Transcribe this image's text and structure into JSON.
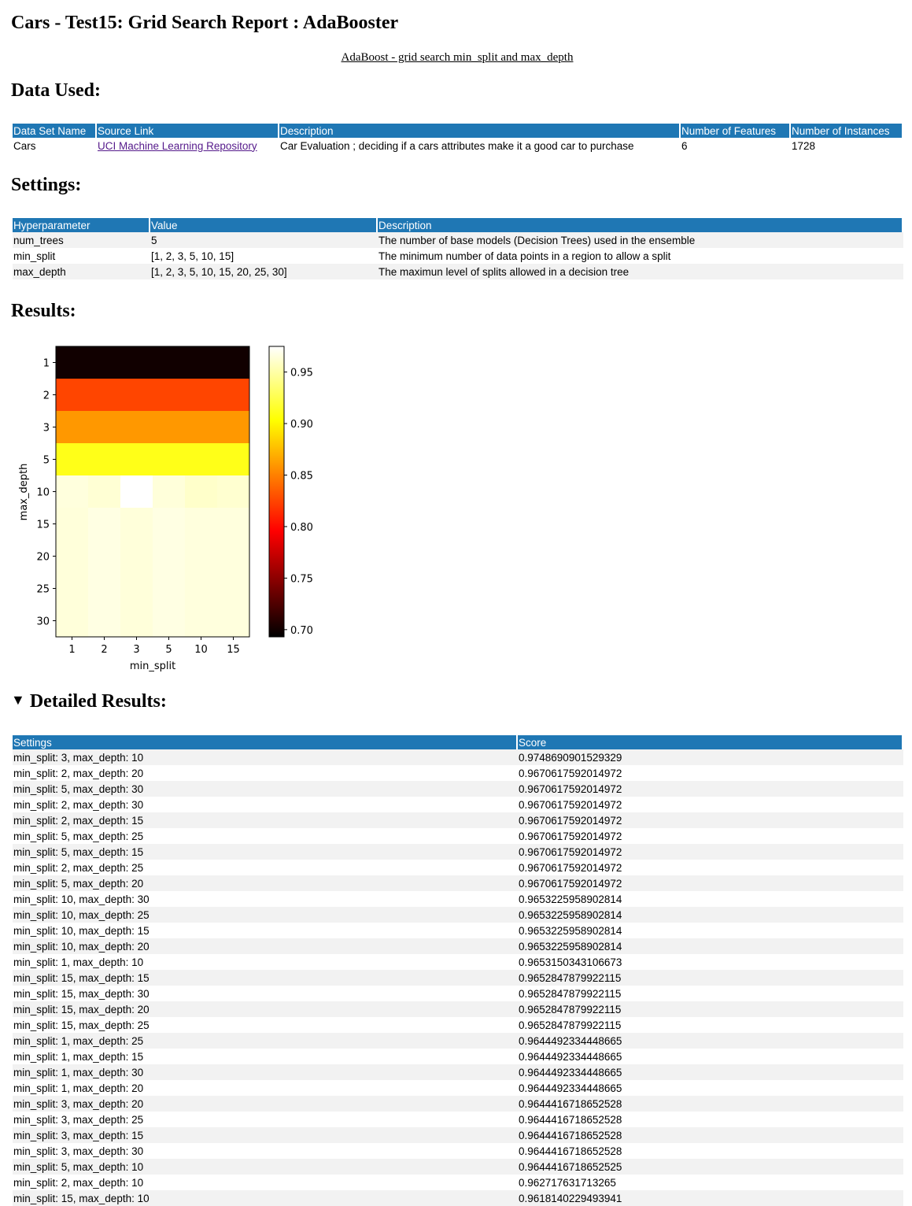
{
  "page": {
    "title": "Cars - Test15: Grid Search Report : AdaBooster",
    "subtitle": "AdaBoost - grid search min_split and max_depth"
  },
  "data_used": {
    "heading": "Data Used:",
    "columns": [
      "Data Set Name",
      "Source Link",
      "Description",
      "Number of Features",
      "Number of Instances"
    ],
    "row": {
      "name": "Cars",
      "source": "UCI Machine Learning Repository",
      "description": "Car Evaluation ; deciding if a cars attributes make it a good car to purchase",
      "features": "6",
      "instances": "1728"
    }
  },
  "settings": {
    "heading": "Settings:",
    "columns": [
      "Hyperparameter",
      "Value",
      "Description"
    ],
    "rows": [
      {
        "param": "num_trees",
        "value": "5",
        "desc": "The number of base models (Decision Trees) used in the ensemble"
      },
      {
        "param": "min_split",
        "value": "[1, 2, 3, 5, 10, 15]",
        "desc": "The minimum number of data points in a region to allow a split"
      },
      {
        "param": "max_depth",
        "value": "[1, 2, 3, 5, 10, 15, 20, 25, 30]",
        "desc": "The maximun level of splits allowed in a decision tree"
      }
    ]
  },
  "results": {
    "heading": "Results:"
  },
  "chart_data": {
    "type": "heatmap",
    "xlabel": "min_split",
    "ylabel": "max_depth",
    "x": [
      "1",
      "2",
      "3",
      "5",
      "10",
      "15"
    ],
    "y": [
      "1",
      "2",
      "3",
      "5",
      "10",
      "15",
      "20",
      "25",
      "30"
    ],
    "values": [
      [
        0.7,
        0.7,
        0.7,
        0.7,
        0.7,
        0.7
      ],
      [
        0.825,
        0.825,
        0.825,
        0.825,
        0.825,
        0.825
      ],
      [
        0.86,
        0.86,
        0.86,
        0.86,
        0.86,
        0.86
      ],
      [
        0.91,
        0.91,
        0.91,
        0.91,
        0.91,
        0.91
      ],
      [
        0.9653,
        0.9627,
        0.9749,
        0.9644,
        0.96,
        0.9618
      ],
      [
        0.9644,
        0.9671,
        0.9644,
        0.9671,
        0.9653,
        0.9653
      ],
      [
        0.9644,
        0.9671,
        0.9644,
        0.9671,
        0.9653,
        0.9653
      ],
      [
        0.9644,
        0.9671,
        0.9644,
        0.9671,
        0.9653,
        0.9653
      ],
      [
        0.9644,
        0.9671,
        0.9644,
        0.9671,
        0.9653,
        0.9653
      ]
    ],
    "colorbar": {
      "ticks": [
        "0.95",
        "0.90",
        "0.85",
        "0.80",
        "0.75",
        "0.70"
      ],
      "range": [
        0.693,
        0.9749
      ],
      "colormap": "hot"
    }
  },
  "detailed": {
    "heading": "Detailed Results:",
    "columns": [
      "Settings",
      "Score"
    ],
    "rows": [
      {
        "s": "min_split: 3, max_depth: 10",
        "v": "0.9748690901529329"
      },
      {
        "s": "min_split: 2, max_depth: 20",
        "v": "0.9670617592014972"
      },
      {
        "s": "min_split: 5, max_depth: 30",
        "v": "0.9670617592014972"
      },
      {
        "s": "min_split: 2, max_depth: 30",
        "v": "0.9670617592014972"
      },
      {
        "s": "min_split: 2, max_depth: 15",
        "v": "0.9670617592014972"
      },
      {
        "s": "min_split: 5, max_depth: 25",
        "v": "0.9670617592014972"
      },
      {
        "s": "min_split: 5, max_depth: 15",
        "v": "0.9670617592014972"
      },
      {
        "s": "min_split: 2, max_depth: 25",
        "v": "0.9670617592014972"
      },
      {
        "s": "min_split: 5, max_depth: 20",
        "v": "0.9670617592014972"
      },
      {
        "s": "min_split: 10, max_depth: 30",
        "v": "0.9653225958902814"
      },
      {
        "s": "min_split: 10, max_depth: 25",
        "v": "0.9653225958902814"
      },
      {
        "s": "min_split: 10, max_depth: 15",
        "v": "0.9653225958902814"
      },
      {
        "s": "min_split: 10, max_depth: 20",
        "v": "0.9653225958902814"
      },
      {
        "s": "min_split: 1, max_depth: 10",
        "v": "0.9653150343106673"
      },
      {
        "s": "min_split: 15, max_depth: 15",
        "v": "0.9652847879922115"
      },
      {
        "s": "min_split: 15, max_depth: 30",
        "v": "0.9652847879922115"
      },
      {
        "s": "min_split: 15, max_depth: 20",
        "v": "0.9652847879922115"
      },
      {
        "s": "min_split: 15, max_depth: 25",
        "v": "0.9652847879922115"
      },
      {
        "s": "min_split: 1, max_depth: 25",
        "v": "0.9644492334448665"
      },
      {
        "s": "min_split: 1, max_depth: 15",
        "v": "0.9644492334448665"
      },
      {
        "s": "min_split: 1, max_depth: 30",
        "v": "0.9644492334448665"
      },
      {
        "s": "min_split: 1, max_depth: 20",
        "v": "0.9644492334448665"
      },
      {
        "s": "min_split: 3, max_depth: 20",
        "v": "0.9644416718652528"
      },
      {
        "s": "min_split: 3, max_depth: 25",
        "v": "0.9644416718652528"
      },
      {
        "s": "min_split: 3, max_depth: 15",
        "v": "0.9644416718652528"
      },
      {
        "s": "min_split: 3, max_depth: 30",
        "v": "0.9644416718652528"
      },
      {
        "s": "min_split: 5, max_depth: 10",
        "v": "0.9644416718652525"
      },
      {
        "s": "min_split: 2, max_depth: 10",
        "v": "0.962717631713265"
      },
      {
        "s": "min_split: 15, max_depth: 10",
        "v": "0.9618140229493941"
      }
    ]
  }
}
